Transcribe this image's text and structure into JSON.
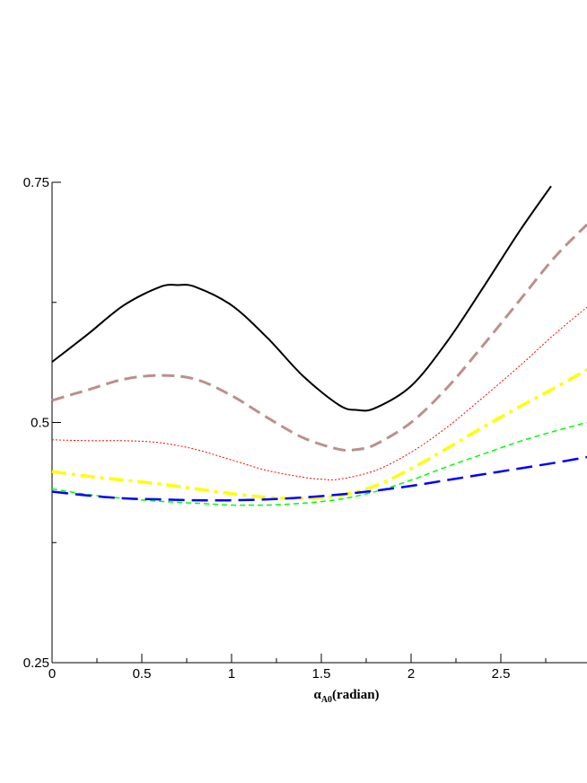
{
  "chart_data": {
    "type": "line",
    "title": "",
    "xlabel_symbol": "α",
    "xlabel_subscript": "A0",
    "xlabel_suffix": "(radian)",
    "ylabel": "",
    "xlim": [
      0,
      2.98
    ],
    "ylim": [
      0.25,
      0.75
    ],
    "x_major_ticks": [
      0,
      0.5,
      1,
      1.5,
      2,
      2.5
    ],
    "x_tick_labels": [
      "0",
      "0.5",
      "1",
      "1.5",
      "2",
      "2.5"
    ],
    "x_minor_ticks": [
      0.25,
      0.75,
      1.25,
      1.75,
      2.25,
      2.75
    ],
    "y_labeled_ticks": [
      0.25,
      0.5,
      0.75
    ],
    "y_tick_labels": [
      "0.25",
      "0.5",
      "0.75"
    ],
    "y_minor_ticks": [
      0.375,
      0.625
    ],
    "grid": false,
    "legend": "none",
    "series": [
      {
        "color": "#000000",
        "style": "solid",
        "x": [
          0,
          0.2,
          0.4,
          0.6,
          0.7,
          0.8,
          1.0,
          1.2,
          1.4,
          1.6,
          1.7,
          1.8,
          2.0,
          2.2,
          2.4,
          2.6,
          2.78
        ],
        "y": [
          0.563,
          0.592,
          0.622,
          0.641,
          0.643,
          0.641,
          0.622,
          0.588,
          0.548,
          0.518,
          0.513,
          0.515,
          0.538,
          0.584,
          0.64,
          0.698,
          0.746
        ]
      },
      {
        "color": "#bc8f8f",
        "style": "dash",
        "x": [
          0,
          0.2,
          0.4,
          0.6,
          0.8,
          1.0,
          1.2,
          1.4,
          1.6,
          1.7,
          1.8,
          2.0,
          2.2,
          2.4,
          2.6,
          2.8,
          2.98
        ],
        "y": [
          0.523,
          0.534,
          0.545,
          0.549,
          0.545,
          0.528,
          0.505,
          0.484,
          0.472,
          0.472,
          0.477,
          0.5,
          0.536,
          0.58,
          0.626,
          0.672,
          0.706
        ]
      },
      {
        "color": "#ff0000",
        "style": "dot",
        "x": [
          0,
          0.2,
          0.4,
          0.6,
          0.8,
          1.0,
          1.2,
          1.4,
          1.5,
          1.6,
          1.8,
          2.0,
          2.2,
          2.4,
          2.6,
          2.8,
          2.98
        ],
        "y": [
          0.482,
          0.481,
          0.481,
          0.479,
          0.472,
          0.461,
          0.45,
          0.443,
          0.441,
          0.441,
          0.45,
          0.469,
          0.495,
          0.526,
          0.558,
          0.592,
          0.62
        ]
      },
      {
        "color": "#ffff00",
        "style": "dashdot",
        "x": [
          0,
          0.2,
          0.4,
          0.6,
          0.8,
          1.0,
          1.2,
          1.3,
          1.4,
          1.6,
          1.8,
          2.0,
          2.2,
          2.4,
          2.6,
          2.8,
          2.98
        ],
        "y": [
          0.449,
          0.444,
          0.44,
          0.436,
          0.431,
          0.426,
          0.422,
          0.421,
          0.421,
          0.424,
          0.434,
          0.452,
          0.473,
          0.495,
          0.516,
          0.536,
          0.555
        ]
      },
      {
        "color": "#00ff00",
        "style": "shortdash",
        "x": [
          0,
          0.2,
          0.4,
          0.6,
          0.8,
          1.0,
          1.1,
          1.2,
          1.4,
          1.6,
          1.8,
          2.0,
          2.2,
          2.4,
          2.6,
          2.8,
          2.98
        ],
        "y": [
          0.431,
          0.425,
          0.421,
          0.418,
          0.416,
          0.414,
          0.414,
          0.414,
          0.416,
          0.42,
          0.428,
          0.44,
          0.454,
          0.467,
          0.48,
          0.491,
          0.5
        ]
      },
      {
        "color": "#0000ff",
        "style": "longdash",
        "x": [
          0,
          0.2,
          0.4,
          0.6,
          0.8,
          1.0,
          1.2,
          1.4,
          1.6,
          1.8,
          2.0,
          2.2,
          2.4,
          2.6,
          2.8,
          2.98
        ],
        "y": [
          0.428,
          0.424,
          0.421,
          0.42,
          0.419,
          0.419,
          0.42,
          0.422,
          0.425,
          0.429,
          0.434,
          0.44,
          0.446,
          0.452,
          0.458,
          0.464
        ]
      }
    ]
  }
}
